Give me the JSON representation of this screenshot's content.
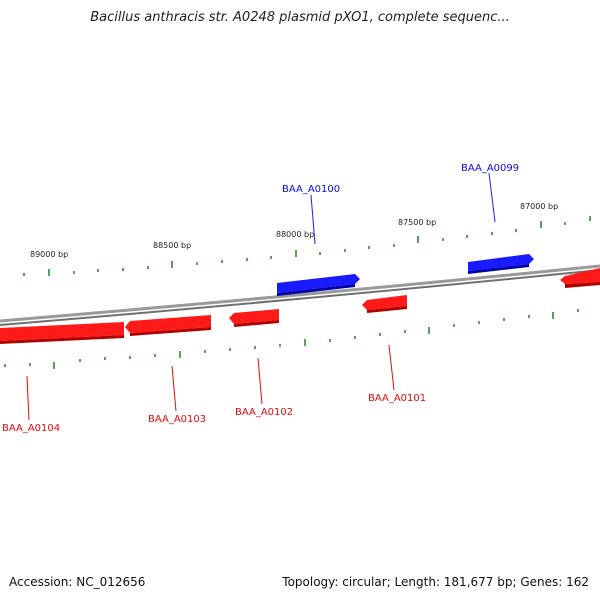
{
  "title": "Bacillus anthracis str. A0248 plasmid pXO1, complete sequenc...",
  "colors": {
    "forward": "#0a0ae6",
    "reverse": "#e60a0a",
    "ticks": "#2d8a2d",
    "backbone": "#888888"
  },
  "ruler": {
    "labels": [
      "89000 bp",
      "88500 bp",
      "88000 bp",
      "87500 bp",
      "87000 bp"
    ]
  },
  "genes": [
    {
      "name": "BAA_A0104",
      "strand": "reverse"
    },
    {
      "name": "BAA_A0103",
      "strand": "reverse"
    },
    {
      "name": "BAA_A0102",
      "strand": "reverse"
    },
    {
      "name": "BAA_A0101",
      "strand": "reverse"
    },
    {
      "name": "BAA_A0100",
      "strand": "forward"
    },
    {
      "name": "BAA_A0099",
      "strand": "forward"
    }
  ],
  "footer": {
    "accession": "Accession: NC_012656",
    "summary": "Topology: circular; Length: 181,677 bp; Genes: 162"
  }
}
